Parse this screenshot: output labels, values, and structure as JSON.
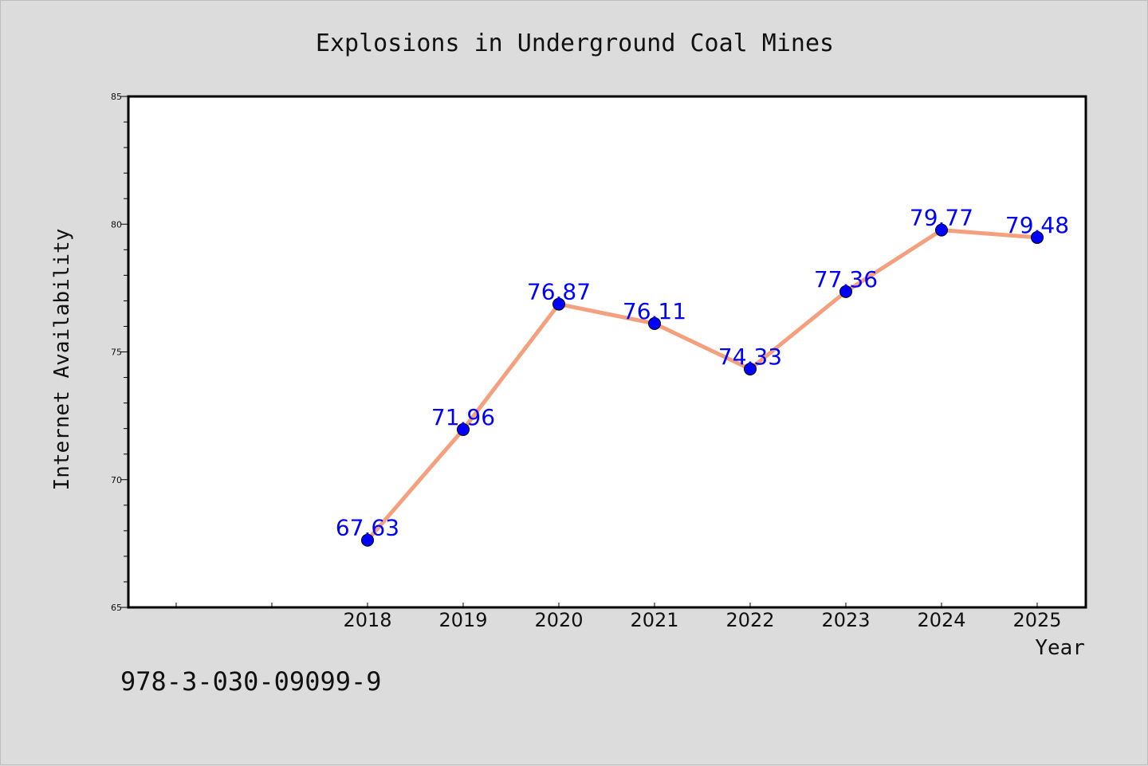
{
  "chart_data": {
    "type": "line",
    "title": "Explosions in Underground Coal Mines",
    "xlabel": "Year",
    "ylabel": "Internet Availability",
    "categories": [
      "2018",
      "2019",
      "2020",
      "2021",
      "2022",
      "2023",
      "2024",
      "2025"
    ],
    "series": [
      {
        "values": [
          67.63,
          71.96,
          76.87,
          76.11,
          74.33,
          77.36,
          79.77,
          79.48
        ],
        "labels": [
          "67.63",
          "71.96",
          "76.87",
          "76.11",
          "74.33",
          "77.36",
          "79.77",
          "79.48"
        ],
        "line_color": "#f4a07e",
        "marker_color": "#0000ff"
      }
    ],
    "ylim": [
      65,
      85
    ],
    "yticks": [
      "65",
      "70",
      "75",
      "80",
      "85"
    ],
    "grid": false,
    "legend": "none"
  },
  "annotation": {
    "isbn": "978-3-030-09099-9"
  }
}
